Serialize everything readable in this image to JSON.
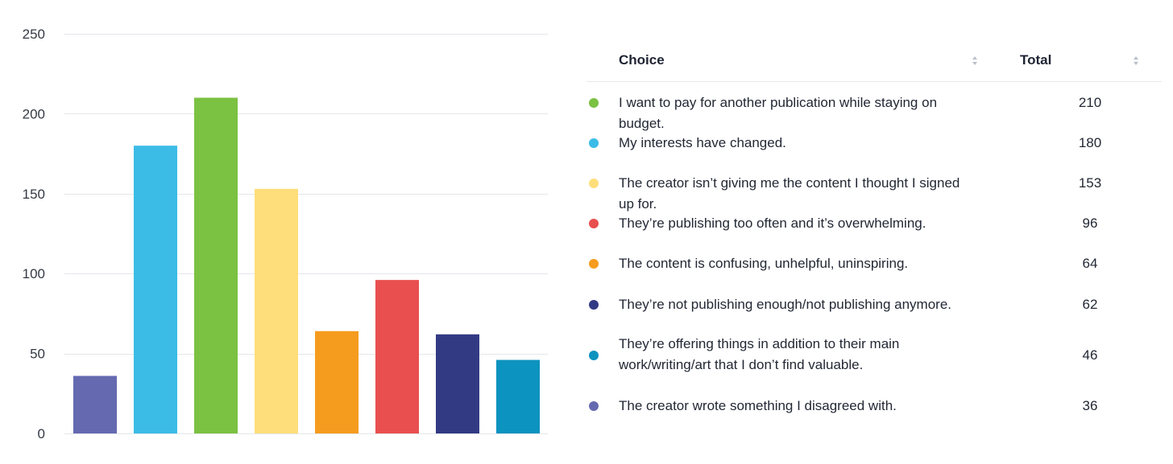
{
  "chart_data": {
    "type": "bar",
    "title": "",
    "xlabel": "",
    "ylabel": "",
    "ylim": [
      0,
      250
    ],
    "yticks": [
      0,
      50,
      100,
      150,
      200,
      250
    ],
    "grid": true,
    "categories": [
      "The creator wrote something I disagreed with.",
      "My interests have changed.",
      "I want to pay for another publication while staying on budget.",
      "The creator isn’t giving me the content I thought I signed up for.",
      "The content is confusing, unhelpful, uninspiring.",
      "They’re publishing too often and it’s overwhelming.",
      "They’re not publishing enough/not publishing anymore.",
      "They’re offering things in addition to their main work/writing/art that I don’t find valuable."
    ],
    "values": [
      36,
      180,
      210,
      153,
      64,
      96,
      62,
      46
    ],
    "colors": [
      "#6569b0",
      "#3bbce6",
      "#7bc142",
      "#fede7a",
      "#f59c1f",
      "#e94f4f",
      "#323a84",
      "#0d93bf"
    ]
  },
  "table": {
    "headers": {
      "choice": "Choice",
      "total": "Total"
    },
    "rows": [
      {
        "choice": "I want to pay for another publication while staying on budget.",
        "total": "210",
        "color": "#7bc142"
      },
      {
        "choice": "My interests have changed.",
        "total": "180",
        "color": "#3bbce6"
      },
      {
        "choice": "The creator isn’t giving me the content I thought I signed up for.",
        "total": "153",
        "color": "#fede7a"
      },
      {
        "choice": "They’re publishing too often and it’s overwhelming.",
        "total": "96",
        "color": "#e94f4f"
      },
      {
        "choice": "The content is confusing, unhelpful, uninspiring.",
        "total": "64",
        "color": "#f59c1f"
      },
      {
        "choice": "They’re not publishing enough/not publishing anymore.",
        "total": "62",
        "color": "#323a84"
      },
      {
        "choice": "They’re offering things in addition to their main work/writing/art that I don’t find valuable.",
        "total": "46",
        "color": "#0d93bf"
      },
      {
        "choice": "The creator wrote something I disagreed with.",
        "total": "36",
        "color": "#6569b0"
      }
    ]
  }
}
